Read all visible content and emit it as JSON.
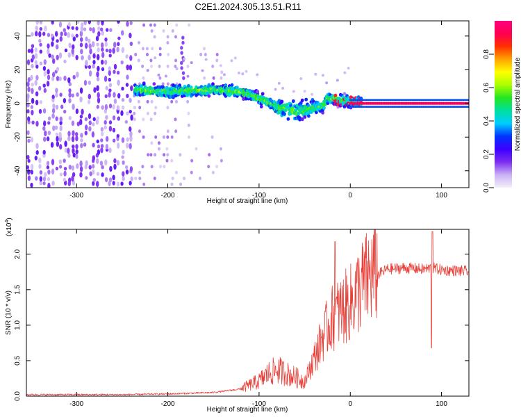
{
  "figure_title": "C2E1.2024.305.13.51.R11",
  "chart_data": [
    {
      "type": "heatmap",
      "xlabel": "Height of straight line (km)",
      "ylabel": "Frequency (Hz)",
      "xlim": [
        -355,
        130
      ],
      "ylim": [
        -50,
        49
      ],
      "x_ticks": [
        -300,
        -200,
        -100,
        0,
        100
      ],
      "y_ticks": [
        -40,
        -20,
        0,
        20,
        40
      ],
      "colorbar": {
        "label": "Normalized spectral amplitude",
        "range": [
          0,
          1
        ],
        "ticks": [
          0.0,
          0.2,
          0.4,
          0.6,
          0.8
        ],
        "colormap": [
          "#f4f0fa",
          "#c9b1f4",
          "#7e2ef2",
          "#3b00ff",
          "#0033ff",
          "#00ccff",
          "#00e0a0",
          "#22e622",
          "#aaff00",
          "#ffff00",
          "#ffa500",
          "#ff3000",
          "#ff0050",
          "#ff0080"
        ]
      },
      "dominant_trace": [
        {
          "x": -235,
          "f": 8
        },
        {
          "x": -200,
          "f": 7
        },
        {
          "x": -150,
          "f": 8
        },
        {
          "x": -120,
          "f": 7
        },
        {
          "x": -100,
          "f": 3
        },
        {
          "x": -80,
          "f": -2
        },
        {
          "x": -60,
          "f": -5
        },
        {
          "x": -45,
          "f": -3
        },
        {
          "x": -30,
          "f": -2
        },
        {
          "x": -25,
          "f": 3
        },
        {
          "x": -10,
          "f": 2
        },
        {
          "x": 0,
          "f": 1
        },
        {
          "x": 130,
          "f": 0
        }
      ]
    },
    {
      "type": "line",
      "xlabel": "Height of straight line (km)",
      "ylabel": "SNR (10 * v/v)",
      "y_multiplier": "(x10^4)",
      "y_multiplier_base": "(x10",
      "y_multiplier_exp": "4",
      "y_multiplier_close": ")",
      "xlim": [
        -355,
        130
      ],
      "ylim": [
        0,
        2.35
      ],
      "x_ticks": [
        -300,
        -200,
        -100,
        0,
        100
      ],
      "y_ticks": [
        0.0,
        0.5,
        1.0,
        1.5,
        2.0
      ],
      "color": "#e8413a",
      "envelope": [
        {
          "x": -355,
          "y": 0.02
        },
        {
          "x": -250,
          "y": 0.02
        },
        {
          "x": -200,
          "y": 0.03
        },
        {
          "x": -150,
          "y": 0.05
        },
        {
          "x": -120,
          "y": 0.1
        },
        {
          "x": -100,
          "y": 0.2
        },
        {
          "x": -90,
          "y": 0.3
        },
        {
          "x": -80,
          "y": 0.35
        },
        {
          "x": -70,
          "y": 0.3
        },
        {
          "x": -60,
          "y": 0.25
        },
        {
          "x": -50,
          "y": 0.2
        },
        {
          "x": -40,
          "y": 0.5
        },
        {
          "x": -30,
          "y": 0.8
        },
        {
          "x": -20,
          "y": 1.05
        },
        {
          "x": -10,
          "y": 1.15
        },
        {
          "x": 0,
          "y": 1.25
        },
        {
          "x": 10,
          "y": 1.45
        },
        {
          "x": 20,
          "y": 1.6
        },
        {
          "x": 30,
          "y": 1.7
        },
        {
          "x": 40,
          "y": 1.78
        },
        {
          "x": 60,
          "y": 1.8
        },
        {
          "x": 80,
          "y": 1.78
        },
        {
          "x": 90,
          "y": 1.8
        },
        {
          "x": 100,
          "y": 1.77
        },
        {
          "x": 130,
          "y": 1.75
        }
      ],
      "peaks": [
        {
          "x": -17,
          "y": 2.18
        },
        {
          "x": 90,
          "y": 2.32
        },
        {
          "x": 89,
          "y": 0.68
        }
      ]
    }
  ]
}
